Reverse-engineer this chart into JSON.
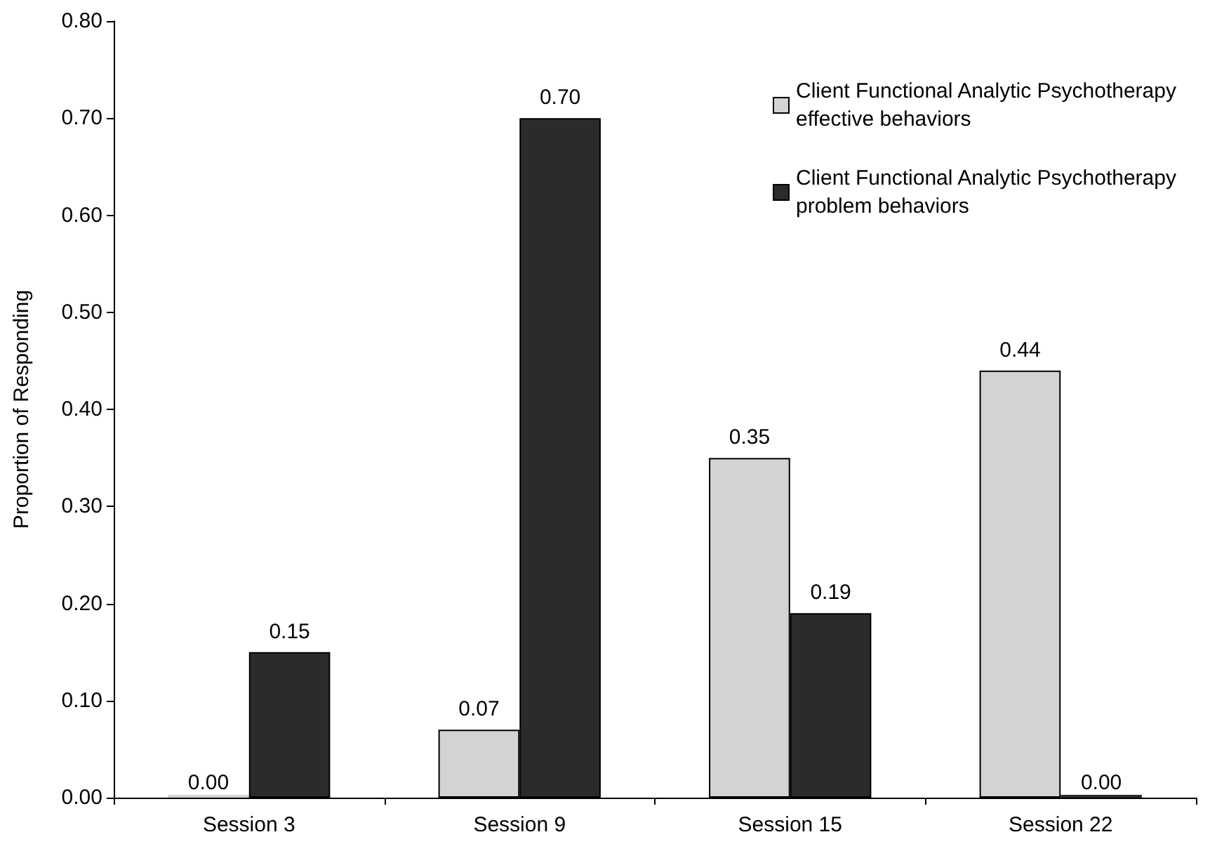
{
  "chart_data": {
    "type": "bar",
    "ylabel": "Proportion of Responding",
    "categories": [
      "Session 3",
      "Session 9",
      "Session 15",
      "Session 22"
    ],
    "series": [
      {
        "name": "Client Functional Analytic Psychotherapy effective behaviors",
        "color": "#d3d3d3",
        "values": [
          0.0,
          0.07,
          0.35,
          0.44
        ],
        "value_labels": [
          "0.00",
          "0.07",
          "0.35",
          "0.44"
        ]
      },
      {
        "name": "Client Functional Analytic Psychotherapy problem behaviors",
        "color": "#2b2b2b",
        "values": [
          0.15,
          0.7,
          0.19,
          0.0
        ],
        "value_labels": [
          "0.15",
          "0.70",
          "0.19",
          "0.00"
        ]
      }
    ],
    "ylim": [
      0,
      0.8
    ],
    "yticks": [
      {
        "value": 0,
        "label": "0.00"
      },
      {
        "value": 0.1,
        "label": "0.10"
      },
      {
        "value": 0.2,
        "label": "0.20"
      },
      {
        "value": 0.3,
        "label": "0.30"
      },
      {
        "value": 0.4,
        "label": "0.40"
      },
      {
        "value": 0.5,
        "label": "0.50"
      },
      {
        "value": 0.6,
        "label": "0.60"
      },
      {
        "value": 0.7,
        "label": "0.70"
      },
      {
        "value": 0.8,
        "label": "0.80"
      }
    ],
    "grid": false,
    "legend": "top right"
  }
}
